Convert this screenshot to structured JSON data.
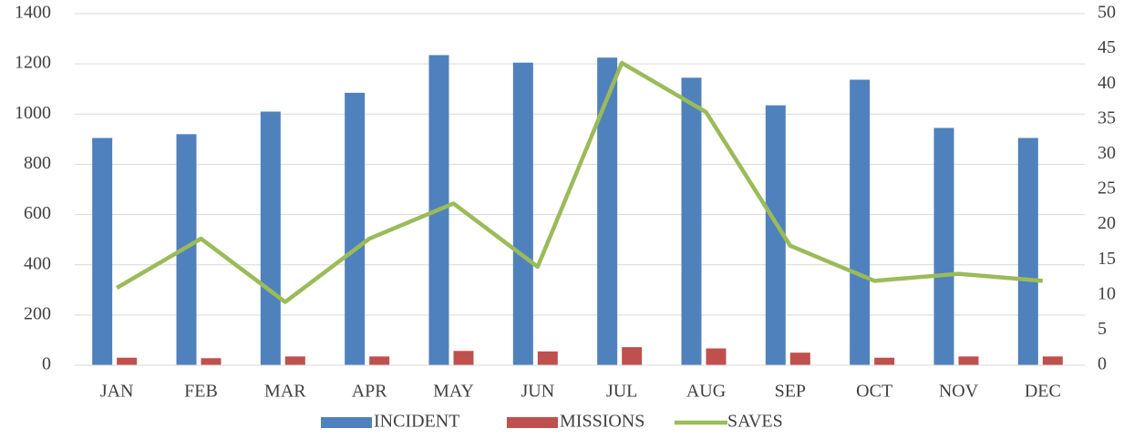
{
  "chart_data": {
    "type": "bar",
    "categories": [
      "JAN",
      "FEB",
      "MAR",
      "APR",
      "MAY",
      "JUN",
      "JUL",
      "AUG",
      "SEP",
      "OCT",
      "NOV",
      "DEC"
    ],
    "series": [
      {
        "name": "INCIDENT",
        "color": "#4f81bd",
        "values": [
          905,
          920,
          1010,
          1085,
          1235,
          1205,
          1225,
          1145,
          1035,
          1137,
          945,
          905
        ]
      },
      {
        "name": "MISSIONS",
        "color": "#c0504d",
        "values": [
          30,
          28,
          35,
          35,
          57,
          55,
          72,
          67,
          50,
          30,
          35,
          35
        ]
      },
      {
        "name": "SAVES",
        "color": "#9bbb59",
        "type": "line",
        "axis": "y2",
        "values": [
          11,
          18,
          9,
          18,
          23,
          14,
          43,
          36,
          17,
          12,
          13,
          12
        ]
      }
    ],
    "ylim": [
      0,
      1400
    ],
    "yticks": [
      0,
      200,
      400,
      600,
      800,
      1000,
      1200,
      1400
    ],
    "y2lim": [
      0,
      50
    ],
    "y2ticks": [
      0,
      5,
      10,
      15,
      20,
      25,
      30,
      35,
      40,
      45,
      50
    ],
    "grid": true,
    "legend": "bottom"
  }
}
